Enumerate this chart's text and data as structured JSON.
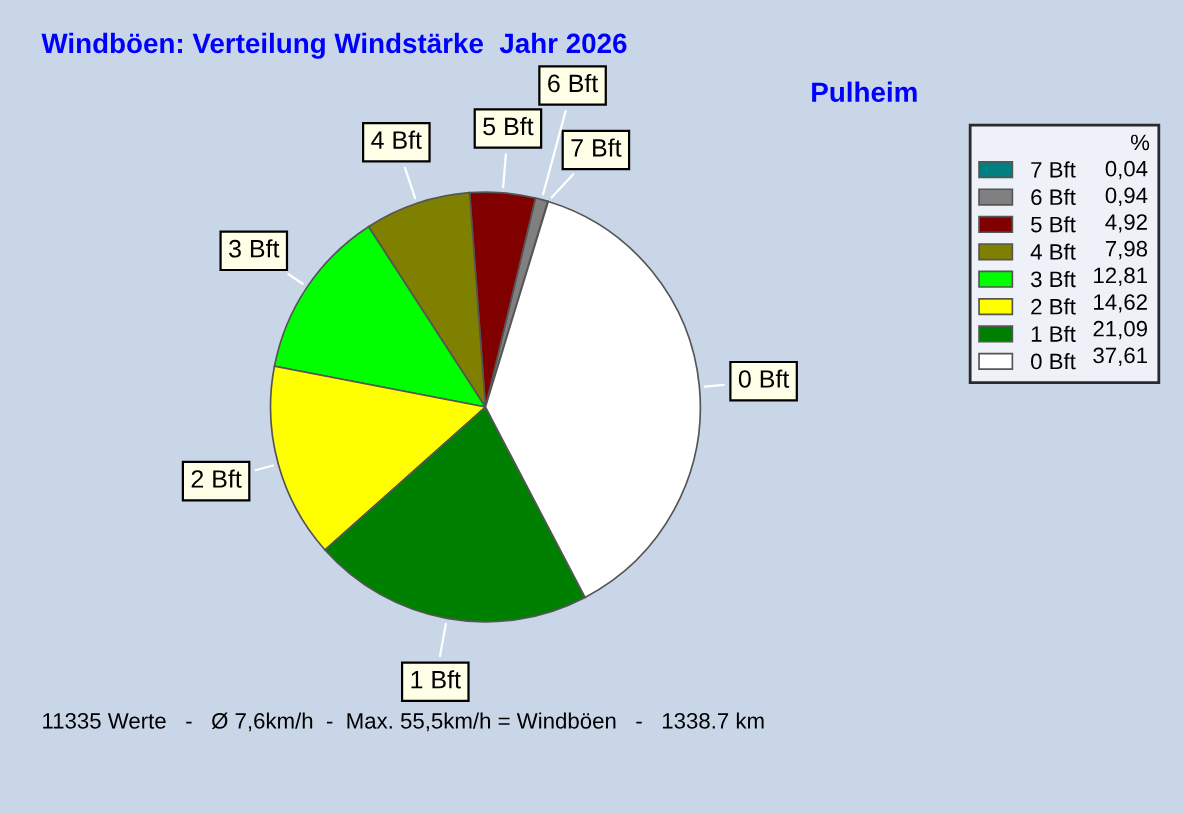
{
  "chart_data": {
    "type": "pie",
    "title": "Windböen: Verteilung Windstärke  Jahr 2026",
    "subtitle": "Pulheim",
    "legend_title": "%",
    "categories": [
      "7 Bft",
      "6 Bft",
      "5 Bft",
      "4 Bft",
      "3 Bft",
      "2 Bft",
      "1 Bft",
      "0 Bft"
    ],
    "values": [
      0.04,
      0.94,
      4.92,
      7.98,
      12.81,
      14.62,
      21.09,
      37.61
    ],
    "value_labels": [
      "0,04",
      "0,94",
      "4,92",
      "7,98",
      "12,81",
      "14,62",
      "21,09",
      "37,61"
    ],
    "colors": [
      "#008080",
      "#808080",
      "#800000",
      "#808000",
      "#00ff00",
      "#ffff00",
      "#008000",
      "#ffffff"
    ],
    "legend": "right",
    "annotations": [
      "11335 Werte   -   Ø 7,6km/h  -  Max. 55,5km/h = Windböen   -   1338.7 km"
    ]
  }
}
